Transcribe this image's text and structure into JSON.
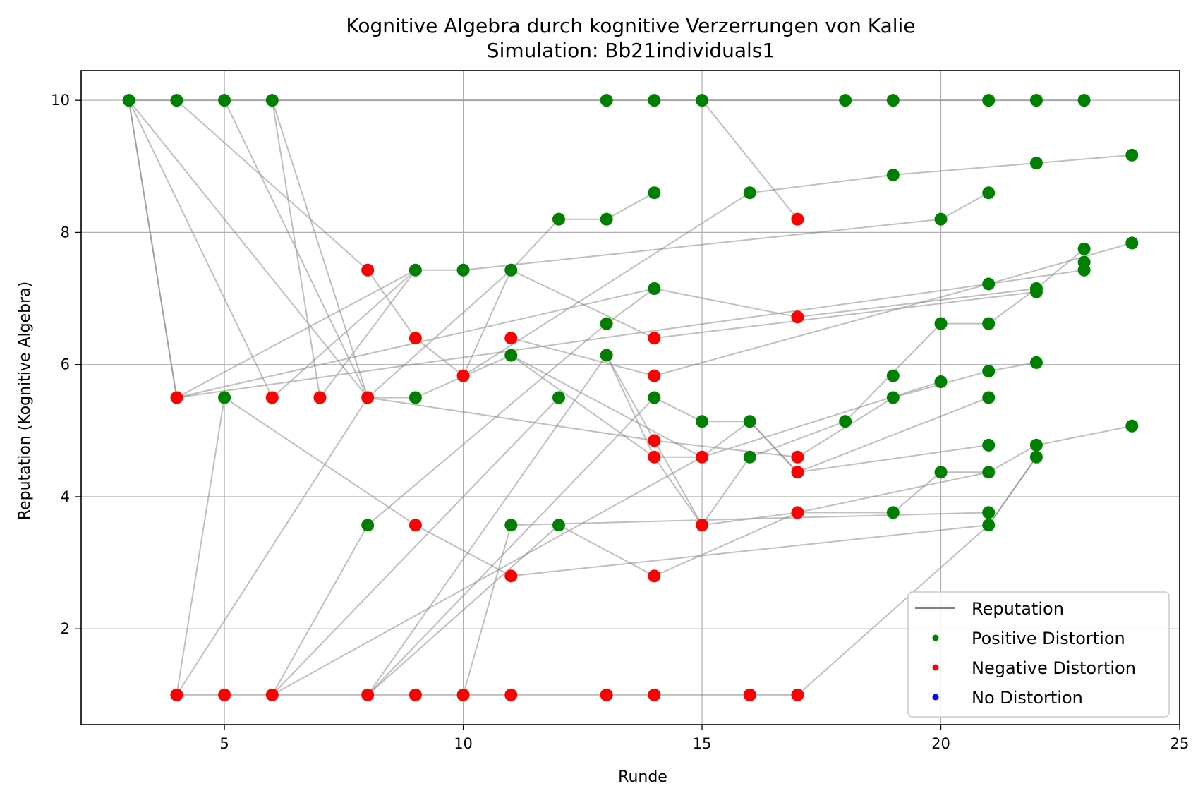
{
  "chart_data": {
    "type": "scatter",
    "title": "Kognitive Algebra durch kognitive Verzerrungen von Kalie",
    "subtitle": "Simulation: Bb21individuals1",
    "xlabel": "Runde",
    "ylabel": "Reputation (Kognitive Algebra)",
    "xlim": [
      2,
      25
    ],
    "ylim": [
      0.55,
      10.45
    ],
    "xticks": [
      5,
      10,
      15,
      20,
      25
    ],
    "yticks": [
      2,
      4,
      6,
      8,
      10
    ],
    "grid": true,
    "legend_position": "bottom-right",
    "legend": [
      {
        "label": "Reputation",
        "kind": "line",
        "color": "#808080"
      },
      {
        "label": "Positive Distortion",
        "kind": "marker",
        "color": "#008000"
      },
      {
        "label": "Negative Distortion",
        "kind": "marker",
        "color": "#ff0000"
      },
      {
        "label": "No Distortion",
        "kind": "marker",
        "color": "#0000ff"
      }
    ],
    "colors": {
      "positive": "#008000",
      "negative": "#ff0000",
      "none": "#0000ff",
      "line": "#808080"
    },
    "reputation_lines": [
      [
        [
          3,
          10
        ],
        [
          4,
          10
        ],
        [
          5,
          10
        ],
        [
          6,
          10
        ],
        [
          13,
          10
        ],
        [
          14,
          10
        ],
        [
          15,
          10
        ],
        [
          18,
          10
        ],
        [
          19,
          10
        ],
        [
          21,
          10
        ],
        [
          22,
          10
        ],
        [
          23,
          10
        ]
      ],
      [
        [
          15,
          10
        ],
        [
          17,
          8.2
        ]
      ],
      [
        [
          3,
          10
        ],
        [
          4,
          5.5
        ]
      ],
      [
        [
          3,
          10
        ],
        [
          4,
          5.5
        ]
      ],
      [
        [
          3,
          10
        ],
        [
          6,
          5.5
        ]
      ],
      [
        [
          3,
          10
        ],
        [
          8,
          5.5
        ]
      ],
      [
        [
          4,
          10
        ],
        [
          8,
          7.43
        ],
        [
          9,
          6.4
        ],
        [
          10,
          5.83
        ],
        [
          11,
          7.43
        ],
        [
          12,
          8.2
        ],
        [
          13,
          8.2
        ],
        [
          14,
          8.6
        ]
      ],
      [
        [
          5,
          10
        ],
        [
          8,
          5.5
        ]
      ],
      [
        [
          6,
          10
        ],
        [
          7,
          5.5
        ]
      ],
      [
        [
          6,
          10
        ],
        [
          8,
          5.5
        ]
      ],
      [
        [
          4,
          5.5
        ],
        [
          9,
          7.43
        ],
        [
          10,
          7.43
        ],
        [
          20,
          8.2
        ],
        [
          21,
          8.6
        ]
      ],
      [
        [
          4,
          5.5
        ],
        [
          14,
          7.15
        ],
        [
          17,
          6.72
        ],
        [
          22,
          7.15
        ],
        [
          23,
          7.75
        ]
      ],
      [
        [
          4,
          5.5
        ],
        [
          21,
          7.22
        ],
        [
          24,
          7.84
        ]
      ],
      [
        [
          5,
          5.5
        ],
        [
          4,
          1
        ]
      ],
      [
        [
          5,
          5.5
        ],
        [
          9,
          3.57
        ],
        [
          11,
          2.8
        ],
        [
          21,
          3.57
        ],
        [
          22,
          4.6
        ]
      ],
      [
        [
          6,
          5.5
        ],
        [
          9,
          7.43
        ]
      ],
      [
        [
          7,
          5.5
        ],
        [
          9,
          7.43
        ]
      ],
      [
        [
          8,
          5.5
        ],
        [
          9,
          5.5
        ],
        [
          11,
          6.14
        ],
        [
          14,
          4.6
        ],
        [
          15,
          4.6
        ],
        [
          16,
          5.14
        ],
        [
          17,
          4.37
        ],
        [
          21,
          4.78
        ]
      ],
      [
        [
          8,
          5.5
        ],
        [
          11,
          7.43
        ]
      ],
      [
        [
          8,
          5.5
        ],
        [
          14,
          4.85
        ],
        [
          17,
          4.6
        ],
        [
          19,
          5.5
        ],
        [
          21,
          5.9
        ],
        [
          22,
          6.03
        ]
      ],
      [
        [
          4,
          1
        ],
        [
          8,
          5.5
        ]
      ],
      [
        [
          4,
          1
        ],
        [
          17,
          1
        ]
      ],
      [
        [
          6,
          1
        ],
        [
          8,
          3.57
        ],
        [
          13,
          6.62
        ],
        [
          14,
          7.15
        ]
      ],
      [
        [
          6,
          1
        ],
        [
          12,
          5.5
        ]
      ],
      [
        [
          6,
          1
        ],
        [
          15,
          4.6
        ]
      ],
      [
        [
          8,
          1
        ],
        [
          13,
          6.14
        ],
        [
          15,
          3.57
        ],
        [
          16,
          4.6
        ],
        [
          18,
          5.14
        ],
        [
          20,
          6.62
        ],
        [
          21,
          6.62
        ],
        [
          22,
          7.15
        ]
      ],
      [
        [
          8,
          1
        ],
        [
          14,
          5.5
        ],
        [
          15,
          5.14
        ],
        [
          16,
          5.14
        ],
        [
          17,
          4.37
        ],
        [
          21,
          5.5
        ]
      ],
      [
        [
          10,
          1
        ],
        [
          11,
          3.57
        ],
        [
          21,
          3.76
        ]
      ],
      [
        [
          8,
          1
        ],
        [
          12,
          3.57
        ],
        [
          14,
          2.8
        ],
        [
          17,
          3.76
        ],
        [
          21,
          4.37
        ],
        [
          22,
          4.78
        ],
        [
          24,
          5.07
        ]
      ],
      [
        [
          11,
          6.4
        ],
        [
          14,
          5.83
        ],
        [
          21,
          7.22
        ],
        [
          23,
          7.43
        ]
      ],
      [
        [
          10,
          5.83
        ],
        [
          16,
          8.6
        ],
        [
          19,
          8.87
        ],
        [
          22,
          9.05
        ],
        [
          24,
          9.17
        ]
      ],
      [
        [
          11,
          7.43
        ],
        [
          14,
          6.4
        ],
        [
          22,
          7.1
        ]
      ],
      [
        [
          11,
          6.14
        ],
        [
          15,
          4.6
        ],
        [
          20,
          5.74
        ]
      ],
      [
        [
          13,
          6.14
        ],
        [
          14,
          4.6
        ],
        [
          15,
          3.57
        ],
        [
          17,
          3.76
        ],
        [
          19,
          3.76
        ],
        [
          20,
          4.37
        ],
        [
          21,
          4.37
        ]
      ],
      [
        [
          17,
          1
        ],
        [
          21,
          3.57
        ],
        [
          22,
          4.6
        ]
      ]
    ],
    "positive_points": [
      [
        3,
        10
      ],
      [
        4,
        10
      ],
      [
        5,
        10
      ],
      [
        6,
        10
      ],
      [
        13,
        10
      ],
      [
        14,
        10
      ],
      [
        15,
        10
      ],
      [
        18,
        10
      ],
      [
        19,
        10
      ],
      [
        21,
        10
      ],
      [
        22,
        10
      ],
      [
        23,
        10
      ],
      [
        24,
        9.17
      ],
      [
        22,
        9.05
      ],
      [
        19,
        8.87
      ],
      [
        14,
        8.6
      ],
      [
        16,
        8.6
      ],
      [
        21,
        8.6
      ],
      [
        12,
        8.2
      ],
      [
        13,
        8.2
      ],
      [
        20,
        8.2
      ],
      [
        24,
        7.84
      ],
      [
        23,
        7.75
      ],
      [
        23,
        7.55
      ],
      [
        23,
        7.43
      ],
      [
        9,
        7.43
      ],
      [
        10,
        7.43
      ],
      [
        11,
        7.43
      ],
      [
        21,
        7.22
      ],
      [
        14,
        7.15
      ],
      [
        22,
        7.15
      ],
      [
        22,
        7.1
      ],
      [
        13,
        6.62
      ],
      [
        20,
        6.62
      ],
      [
        21,
        6.62
      ],
      [
        11,
        6.14
      ],
      [
        13,
        6.14
      ],
      [
        22,
        6.03
      ],
      [
        21,
        5.9
      ],
      [
        19,
        5.83
      ],
      [
        20,
        5.74
      ],
      [
        5,
        5.5
      ],
      [
        9,
        5.5
      ],
      [
        12,
        5.5
      ],
      [
        14,
        5.5
      ],
      [
        19,
        5.5
      ],
      [
        21,
        5.5
      ],
      [
        15,
        5.14
      ],
      [
        16,
        5.14
      ],
      [
        18,
        5.14
      ],
      [
        24,
        5.07
      ],
      [
        21,
        4.78
      ],
      [
        22,
        4.78
      ],
      [
        16,
        4.6
      ],
      [
        22,
        4.6
      ],
      [
        20,
        4.37
      ],
      [
        21,
        4.37
      ],
      [
        19,
        3.76
      ],
      [
        21,
        3.76
      ],
      [
        8,
        3.57
      ],
      [
        11,
        3.57
      ],
      [
        12,
        3.57
      ],
      [
        21,
        3.57
      ]
    ],
    "negative_points": [
      [
        17,
        8.2
      ],
      [
        8,
        7.43
      ],
      [
        17,
        6.72
      ],
      [
        9,
        6.4
      ],
      [
        11,
        6.4
      ],
      [
        14,
        6.4
      ],
      [
        10,
        5.83
      ],
      [
        14,
        5.83
      ],
      [
        4,
        5.5
      ],
      [
        6,
        5.5
      ],
      [
        7,
        5.5
      ],
      [
        8,
        5.5
      ],
      [
        14,
        4.85
      ],
      [
        14,
        4.6
      ],
      [
        15,
        4.6
      ],
      [
        17,
        4.6
      ],
      [
        17,
        4.37
      ],
      [
        17,
        3.76
      ],
      [
        9,
        3.57
      ],
      [
        15,
        3.57
      ],
      [
        11,
        2.8
      ],
      [
        14,
        2.8
      ],
      [
        4,
        1
      ],
      [
        5,
        1
      ],
      [
        6,
        1
      ],
      [
        8,
        1
      ],
      [
        9,
        1
      ],
      [
        10,
        1
      ],
      [
        11,
        1
      ],
      [
        13,
        1
      ],
      [
        14,
        1
      ],
      [
        16,
        1
      ],
      [
        17,
        1
      ]
    ],
    "none_points": []
  }
}
